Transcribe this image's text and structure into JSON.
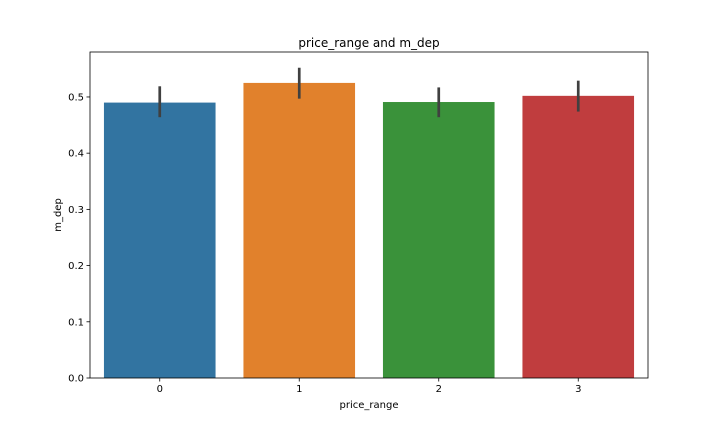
{
  "chart_data": {
    "type": "bar",
    "title": "price_range and m_dep",
    "xlabel": "price_range",
    "ylabel": "m_dep",
    "categories": [
      "0",
      "1",
      "2",
      "3"
    ],
    "values": [
      0.49,
      0.525,
      0.491,
      0.502
    ],
    "error_low": [
      0.464,
      0.497,
      0.464,
      0.474
    ],
    "error_high": [
      0.519,
      0.552,
      0.517,
      0.529
    ],
    "ylim": [
      0.0,
      0.58
    ],
    "yticks": [
      0.0,
      0.1,
      0.2,
      0.3,
      0.4,
      0.5
    ],
    "ytick_labels": [
      "0.0",
      "0.1",
      "0.2",
      "0.3",
      "0.4",
      "0.5"
    ],
    "colors": [
      "#3274a1",
      "#e1812c",
      "#3a923a",
      "#c03d3e"
    ],
    "error_bar_color": "#404040",
    "grid": false,
    "legend": "none"
  }
}
